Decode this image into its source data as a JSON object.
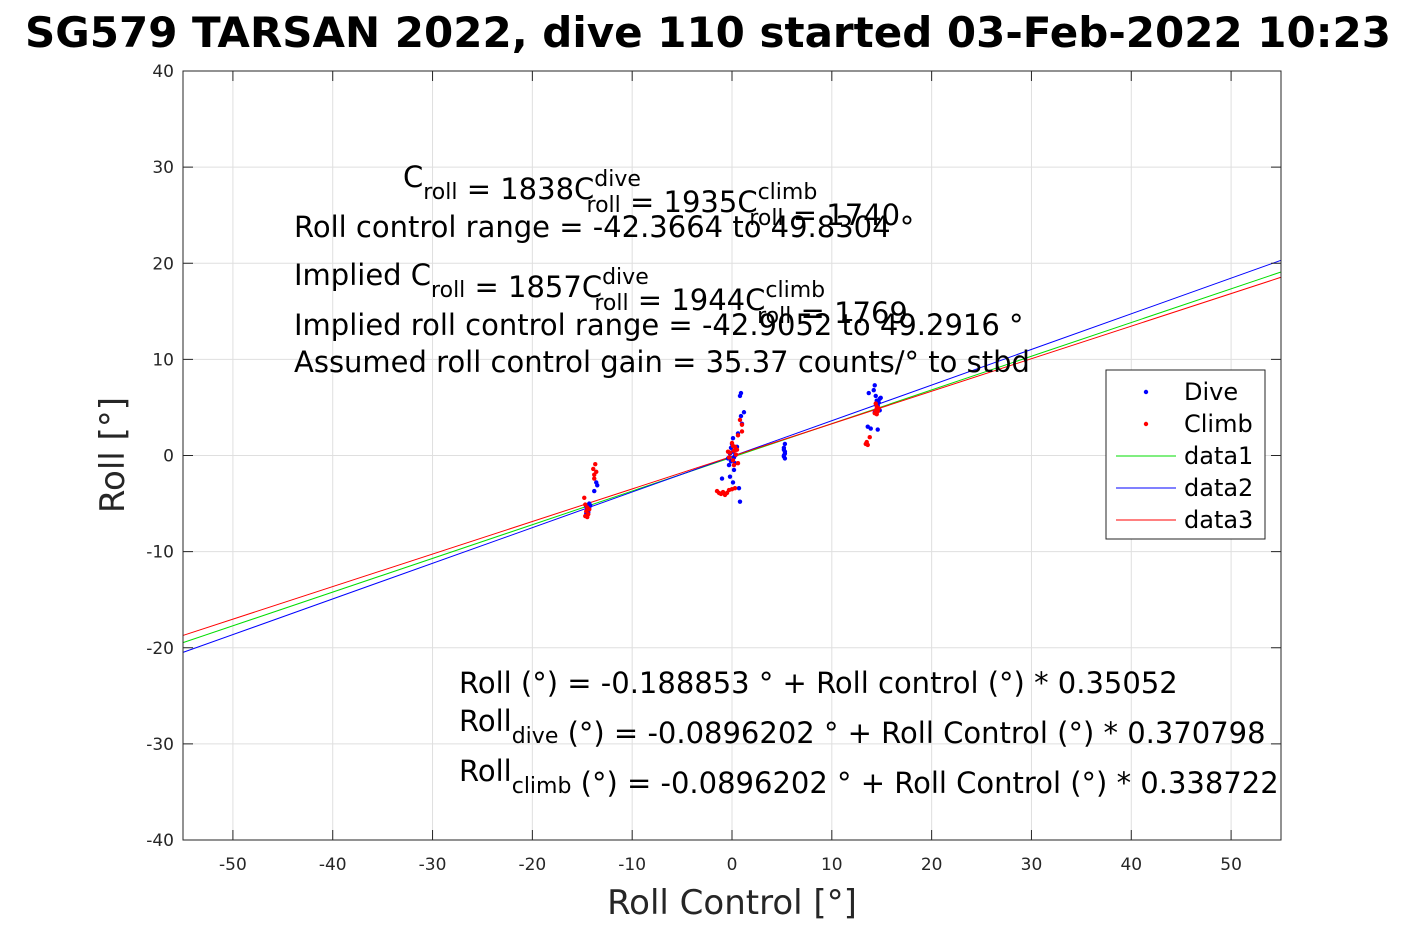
{
  "chart_data": {
    "type": "scatter",
    "title": "SG579 TARSAN 2022, dive 110 started 03-Feb-2022 10:23",
    "xlabel": "Roll Control [°]",
    "ylabel": "Roll [°]",
    "xlim": [
      -55,
      55
    ],
    "ylim": [
      -40,
      40
    ],
    "x_ticks": [
      -50,
      -40,
      -30,
      -20,
      -10,
      0,
      10,
      20,
      30,
      40,
      50
    ],
    "y_ticks": [
      -40,
      -30,
      -20,
      -10,
      0,
      10,
      20,
      30,
      40
    ],
    "grid": true,
    "legend_position": "right",
    "series": [
      {
        "name": "Dive",
        "kind": "points",
        "color": "#0000ff",
        "points": [
          [
            -14.6,
            -5.3
          ],
          [
            -14.5,
            -5.6
          ],
          [
            -14.4,
            -5.9
          ],
          [
            -14.3,
            -5.0
          ],
          [
            -14.5,
            -5.5
          ],
          [
            -14.2,
            -5.2
          ],
          [
            -14.6,
            -6.0
          ],
          [
            -14.4,
            -5.7
          ],
          [
            -14.3,
            -5.4
          ],
          [
            -13.8,
            -3.7
          ],
          [
            -13.6,
            -2.8
          ],
          [
            -13.5,
            -3.1
          ],
          [
            -0.4,
            -0.3
          ],
          [
            -0.2,
            0.2
          ],
          [
            0.0,
            -0.5
          ],
          [
            0.1,
            0.4
          ],
          [
            0.2,
            -0.2
          ],
          [
            0.3,
            -0.8
          ],
          [
            -0.1,
            0.8
          ],
          [
            0.0,
            1.2
          ],
          [
            0.1,
            1.8
          ],
          [
            0.2,
            -1.5
          ],
          [
            -0.3,
            -1.0
          ],
          [
            0.4,
            0.6
          ],
          [
            -0.2,
            -2.2
          ],
          [
            0.1,
            -2.8
          ],
          [
            0.6,
            2.3
          ],
          [
            0.9,
            4.1
          ],
          [
            0.8,
            6.2
          ],
          [
            0.9,
            6.5
          ],
          [
            1.2,
            4.5
          ],
          [
            1.0,
            3.3
          ],
          [
            0.8,
            -4.8
          ],
          [
            0.7,
            -3.4
          ],
          [
            -1.0,
            -2.4
          ],
          [
            0.3,
            0.0
          ],
          [
            -0.1,
            -0.6
          ],
          [
            0.5,
            0.9
          ],
          [
            5.2,
            0.0
          ],
          [
            5.3,
            0.4
          ],
          [
            5.3,
            -0.3
          ],
          [
            5.2,
            0.8
          ],
          [
            5.3,
            1.2
          ],
          [
            5.2,
            -0.1
          ],
          [
            5.3,
            0.2
          ],
          [
            5.2,
            0.6
          ],
          [
            13.6,
            3.0
          ],
          [
            13.9,
            2.8
          ],
          [
            14.2,
            6.8
          ],
          [
            14.3,
            7.3
          ],
          [
            14.4,
            6.2
          ],
          [
            14.5,
            5.7
          ],
          [
            14.6,
            5.2
          ],
          [
            14.7,
            5.5
          ],
          [
            14.8,
            5.9
          ],
          [
            14.9,
            6.0
          ],
          [
            14.5,
            4.8
          ],
          [
            14.6,
            2.7
          ],
          [
            13.7,
            6.5
          ],
          [
            14.3,
            4.5
          ],
          [
            14.8,
            4.7
          ]
        ]
      },
      {
        "name": "Climb",
        "kind": "points",
        "color": "#ff0000",
        "points": [
          [
            -14.7,
            -6.3
          ],
          [
            -14.6,
            -5.8
          ],
          [
            -14.5,
            -5.4
          ],
          [
            -14.8,
            -4.4
          ],
          [
            -14.4,
            -6.1
          ],
          [
            -14.7,
            -5.1
          ],
          [
            -14.3,
            -5.6
          ],
          [
            -14.5,
            -6.4
          ],
          [
            -13.9,
            -1.4
          ],
          [
            -13.7,
            -0.9
          ],
          [
            -13.8,
            -2.0
          ],
          [
            -13.6,
            -1.7
          ],
          [
            -13.8,
            -2.4
          ],
          [
            -1.5,
            -3.7
          ],
          [
            -1.3,
            -3.9
          ],
          [
            -1.1,
            -4.0
          ],
          [
            -0.9,
            -3.8
          ],
          [
            -0.7,
            -4.1
          ],
          [
            -0.5,
            -3.9
          ],
          [
            -0.3,
            -3.6
          ],
          [
            0.0,
            -3.5
          ],
          [
            0.3,
            -3.4
          ],
          [
            -0.2,
            0.3
          ],
          [
            0.1,
            -0.5
          ],
          [
            0.3,
            0.9
          ],
          [
            0.4,
            0.1
          ],
          [
            0.2,
            -1.0
          ],
          [
            0.5,
            0.6
          ],
          [
            -0.3,
            -0.2
          ],
          [
            0.0,
            1.3
          ],
          [
            0.6,
            2.1
          ],
          [
            0.8,
            3.7
          ],
          [
            1.0,
            3.2
          ],
          [
            1.0,
            2.5
          ],
          [
            0.6,
            -0.8
          ],
          [
            0.2,
            0.5
          ],
          [
            0.1,
            1.0
          ],
          [
            -0.4,
            0.4
          ],
          [
            13.4,
            1.2
          ],
          [
            13.5,
            1.4
          ],
          [
            13.6,
            1.1
          ],
          [
            13.8,
            1.9
          ],
          [
            14.3,
            4.4
          ],
          [
            14.4,
            4.7
          ],
          [
            14.5,
            5.1
          ],
          [
            14.6,
            4.6
          ],
          [
            14.7,
            4.9
          ],
          [
            14.4,
            5.4
          ],
          [
            14.5,
            4.3
          ]
        ]
      },
      {
        "name": "data1",
        "kind": "line",
        "color": "#00dd00",
        "intercept": -0.188853,
        "slope": 0.35052
      },
      {
        "name": "data2",
        "kind": "line",
        "color": "#0000ff",
        "intercept": -0.0896202,
        "slope": 0.370798
      },
      {
        "name": "data3",
        "kind": "line",
        "color": "#ff0000",
        "intercept": -0.0896202,
        "slope": 0.338722
      }
    ],
    "annotations": [
      [
        {
          "t": "C"
        },
        {
          "t": "roll",
          "sub": true
        },
        {
          "t": " = 1838"
        },
        {
          "gap": true
        },
        {
          "t": "C"
        },
        {
          "t": "dive",
          "sup": true,
          "pair": "roll"
        },
        {
          "t": " = 1935"
        },
        {
          "gap": true
        },
        {
          "t": "C"
        },
        {
          "t": "climb",
          "sup": true,
          "pair": "roll"
        },
        {
          "t": " = 1740"
        }
      ],
      [
        {
          "t": "Roll control range = -42.3664 to 49.8304 °"
        }
      ],
      [
        {
          "t": "Implied C"
        },
        {
          "t": "roll",
          "sub": true
        },
        {
          "t": " = 1857"
        },
        {
          "gap": true
        },
        {
          "t": "C"
        },
        {
          "t": "dive",
          "sup": true,
          "pair": "roll"
        },
        {
          "t": " = 1944"
        },
        {
          "gap": true
        },
        {
          "t": "C"
        },
        {
          "t": "climb",
          "sup": true,
          "pair": "roll"
        },
        {
          "t": " = 1769"
        }
      ],
      [
        {
          "t": "Implied roll control range = -42.9052 to 49.2916 °"
        }
      ],
      [
        {
          "t": "Assumed roll control gain = 35.37 counts/° to stbd"
        }
      ],
      [
        {
          "t": "Roll (°) = -0.188853 ° + Roll control (°) * 0.35052"
        }
      ],
      [
        {
          "t": "Roll"
        },
        {
          "t": "dive",
          "sub": true
        },
        {
          "t": " (°) = -0.0896202 ° + Roll Control (°) * 0.370798"
        }
      ],
      [
        {
          "t": "Roll"
        },
        {
          "t": "climb",
          "sub": true
        },
        {
          "t": " (°) = -0.0896202 ° + Roll Control (°) * 0.338722"
        }
      ]
    ]
  }
}
